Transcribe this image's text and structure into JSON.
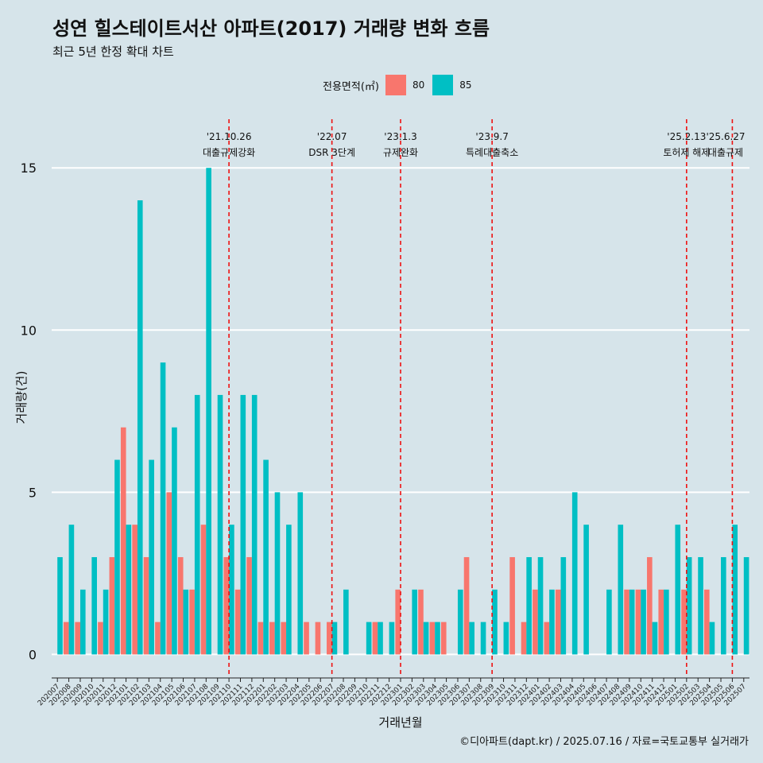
{
  "title": "성연 힐스테이트서산 아파트(2017) 거래량 변화 흐름",
  "subtitle": "최근 5년 한정 확대 차트",
  "caption": "©디아파트(dapt.kr) / 2025.07.16 / 자료=국토교통부 실거래가",
  "chart_data": {
    "type": "bar",
    "xlabel": "거래년월",
    "ylabel": "거래량(건)",
    "ylim": [
      -0.7,
      16.5
    ],
    "yticks": [
      0,
      5,
      10,
      15
    ],
    "legend_title": "전용면적(㎡)",
    "legend_position": "top",
    "categories": [
      "202007",
      "202008",
      "202009",
      "202010",
      "202011",
      "202012",
      "202101",
      "202102",
      "202103",
      "202104",
      "202105",
      "202106",
      "202107",
      "202108",
      "202109",
      "202110",
      "202111",
      "202112",
      "202201",
      "202202",
      "202203",
      "202204",
      "202205",
      "202206",
      "202207",
      "202208",
      "202209",
      "202210",
      "202211",
      "202212",
      "202301",
      "202302",
      "202303",
      "202304",
      "202305",
      "202306",
      "202307",
      "202308",
      "202309",
      "202310",
      "202311",
      "202312",
      "202401",
      "202402",
      "202403",
      "202404",
      "202405",
      "202406",
      "202407",
      "202408",
      "202409",
      "202410",
      "202411",
      "202412",
      "202501",
      "202502",
      "202503",
      "202504",
      "202505",
      "202506",
      "202507"
    ],
    "series": [
      {
        "name": "80",
        "color": "#f8766d",
        "values": [
          0,
          1,
          1,
          0,
          1,
          3,
          7,
          4,
          3,
          1,
          5,
          3,
          2,
          4,
          0,
          3,
          2,
          3,
          1,
          1,
          1,
          0,
          1,
          1,
          1,
          0,
          0,
          0,
          1,
          0,
          2,
          0,
          2,
          1,
          1,
          0,
          3,
          0,
          0,
          0,
          3,
          1,
          2,
          1,
          2,
          0,
          0,
          0,
          0,
          0,
          2,
          2,
          3,
          2,
          0,
          2,
          0,
          2,
          0,
          0,
          0
        ]
      },
      {
        "name": "85",
        "color": "#00bfc4",
        "values": [
          3,
          4,
          2,
          3,
          2,
          6,
          4,
          14,
          6,
          9,
          7,
          2,
          8,
          15,
          8,
          4,
          8,
          8,
          6,
          5,
          4,
          5,
          0,
          0,
          1,
          2,
          0,
          1,
          1,
          1,
          0,
          2,
          1,
          1,
          0,
          2,
          1,
          1,
          2,
          1,
          0,
          3,
          3,
          2,
          3,
          5,
          4,
          0,
          2,
          4,
          2,
          2,
          1,
          2,
          4,
          3,
          3,
          1,
          3,
          4,
          3
        ]
      }
    ],
    "events": [
      {
        "date": "'21.10.26",
        "label": "대출규제강화",
        "category": "202110"
      },
      {
        "date": "'22.07",
        "label": "DSR 3단계",
        "category": "202207"
      },
      {
        "date": "'23.1.3",
        "label": "규제완화",
        "category": "202301"
      },
      {
        "date": "'23.9.7",
        "label": "특례대출축소",
        "category": "202309"
      },
      {
        "date": "'25.2.13",
        "label": "토허제 해제",
        "category": "202502"
      },
      {
        "date": "'25.6.27",
        "label": "대출규제",
        "category": "202506"
      }
    ],
    "event_line_color": "#ee1111",
    "grid": true
  }
}
